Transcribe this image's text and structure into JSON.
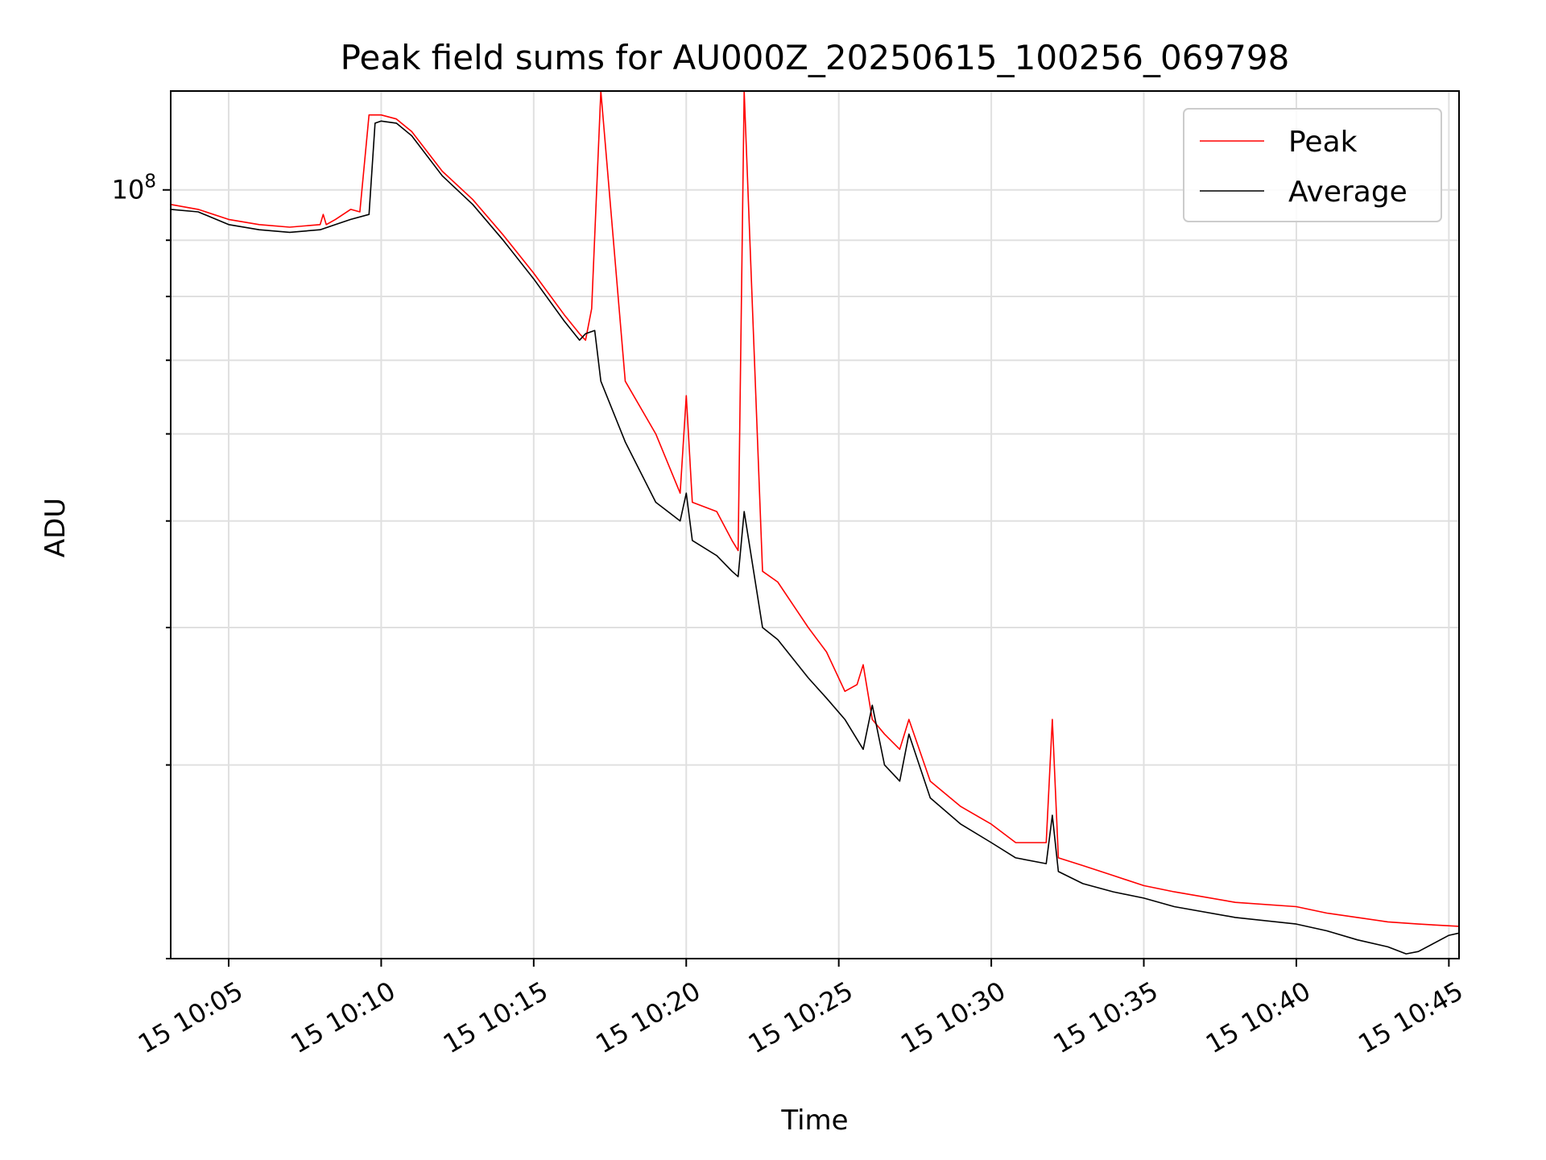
{
  "chart_data": {
    "type": "line",
    "title": "Peak field sums for AU000Z_20250615_100256_069798",
    "xlabel": "Time",
    "ylabel": "ADU",
    "y_scale": "log",
    "grid": true,
    "legend_position": "top-right",
    "x_ticks": [
      "15 10:05",
      "15 10:10",
      "15 10:15",
      "15 10:20",
      "15 10:25",
      "15 10:30",
      "15 10:35",
      "15 10:40",
      "15 10:45"
    ],
    "y_tick_labels": [
      {
        "value": 100000000,
        "base": "10",
        "exponent": "8"
      }
    ],
    "xlim": [
      "2025-06-15 10:03:06",
      "2025-06-15 10:45:20"
    ],
    "ylim": [
      20000000,
      123000000
    ],
    "series": [
      {
        "name": "Peak",
        "color": "#ff0000",
        "x": [
          "2025-06-15 10:03:06",
          "2025-06-15 10:04:00",
          "2025-06-15 10:05:00",
          "2025-06-15 10:06:00",
          "2025-06-15 10:07:00",
          "2025-06-15 10:08:00",
          "2025-06-15 10:08:06",
          "2025-06-15 10:08:12",
          "2025-06-15 10:08:30",
          "2025-06-15 10:09:00",
          "2025-06-15 10:09:18",
          "2025-06-15 10:09:36",
          "2025-06-15 10:09:48",
          "2025-06-15 10:10:00",
          "2025-06-15 10:10:30",
          "2025-06-15 10:11:00",
          "2025-06-15 10:12:00",
          "2025-06-15 10:13:00",
          "2025-06-15 10:14:00",
          "2025-06-15 10:15:00",
          "2025-06-15 10:16:00",
          "2025-06-15 10:16:30",
          "2025-06-15 10:16:42",
          "2025-06-15 10:16:54",
          "2025-06-15 10:17:12",
          "2025-06-15 10:18:00",
          "2025-06-15 10:19:00",
          "2025-06-15 10:19:48",
          "2025-06-15 10:20:00",
          "2025-06-15 10:20:12",
          "2025-06-15 10:21:00",
          "2025-06-15 10:21:30",
          "2025-06-15 10:21:42",
          "2025-06-15 10:21:54",
          "2025-06-15 10:22:30",
          "2025-06-15 10:23:00",
          "2025-06-15 10:24:00",
          "2025-06-15 10:24:36",
          "2025-06-15 10:25:12",
          "2025-06-15 10:25:36",
          "2025-06-15 10:25:48",
          "2025-06-15 10:26:06",
          "2025-06-15 10:26:30",
          "2025-06-15 10:27:00",
          "2025-06-15 10:27:18",
          "2025-06-15 10:28:00",
          "2025-06-15 10:29:00",
          "2025-06-15 10:30:00",
          "2025-06-15 10:30:48",
          "2025-06-15 10:31:48",
          "2025-06-15 10:32:00",
          "2025-06-15 10:32:12",
          "2025-06-15 10:33:00",
          "2025-06-15 10:34:00",
          "2025-06-15 10:35:00",
          "2025-06-15 10:36:00",
          "2025-06-15 10:38:00",
          "2025-06-15 10:40:00",
          "2025-06-15 10:41:00",
          "2025-06-15 10:42:00",
          "2025-06-15 10:43:00",
          "2025-06-15 10:44:00",
          "2025-06-15 10:45:20"
        ],
        "y": [
          97000000,
          96000000,
          94000000,
          93000000,
          92500000,
          93000000,
          95000000,
          93000000,
          94000000,
          96000000,
          95500000,
          117000000,
          117000000,
          117000000,
          116000000,
          113000000,
          104000000,
          98000000,
          91000000,
          84000000,
          77000000,
          74000000,
          73000000,
          78000000,
          123000000,
          67000000,
          60000000,
          53000000,
          65000000,
          52000000,
          51000000,
          48000000,
          47000000,
          123000000,
          45000000,
          44000000,
          40000000,
          38000000,
          35000000,
          35500000,
          37000000,
          33000000,
          32000000,
          31000000,
          33000000,
          29000000,
          27500000,
          26500000,
          25500000,
          25500000,
          33000000,
          24700000,
          24300000,
          23800000,
          23300000,
          23000000,
          22500000,
          22300000,
          22000000,
          21800000,
          21600000,
          21500000,
          21400000
        ]
      },
      {
        "name": "Average",
        "color": "#000000",
        "x": [
          "2025-06-15 10:03:06",
          "2025-06-15 10:04:00",
          "2025-06-15 10:05:00",
          "2025-06-15 10:06:00",
          "2025-06-15 10:07:00",
          "2025-06-15 10:08:00",
          "2025-06-15 10:08:30",
          "2025-06-15 10:09:00",
          "2025-06-15 10:09:36",
          "2025-06-15 10:09:48",
          "2025-06-15 10:10:00",
          "2025-06-15 10:10:30",
          "2025-06-15 10:11:00",
          "2025-06-15 10:12:00",
          "2025-06-15 10:13:00",
          "2025-06-15 10:14:00",
          "2025-06-15 10:15:00",
          "2025-06-15 10:16:00",
          "2025-06-15 10:16:30",
          "2025-06-15 10:16:42",
          "2025-06-15 10:17:00",
          "2025-06-15 10:17:12",
          "2025-06-15 10:18:00",
          "2025-06-15 10:19:00",
          "2025-06-15 10:19:48",
          "2025-06-15 10:20:00",
          "2025-06-15 10:20:12",
          "2025-06-15 10:21:00",
          "2025-06-15 10:21:30",
          "2025-06-15 10:21:42",
          "2025-06-15 10:21:54",
          "2025-06-15 10:22:30",
          "2025-06-15 10:23:00",
          "2025-06-15 10:24:00",
          "2025-06-15 10:24:36",
          "2025-06-15 10:25:12",
          "2025-06-15 10:25:48",
          "2025-06-15 10:26:06",
          "2025-06-15 10:26:30",
          "2025-06-15 10:27:00",
          "2025-06-15 10:27:18",
          "2025-06-15 10:28:00",
          "2025-06-15 10:29:00",
          "2025-06-15 10:30:00",
          "2025-06-15 10:30:48",
          "2025-06-15 10:31:48",
          "2025-06-15 10:32:00",
          "2025-06-15 10:32:12",
          "2025-06-15 10:33:00",
          "2025-06-15 10:34:00",
          "2025-06-15 10:35:00",
          "2025-06-15 10:36:00",
          "2025-06-15 10:38:00",
          "2025-06-15 10:40:00",
          "2025-06-15 10:41:00",
          "2025-06-15 10:42:00",
          "2025-06-15 10:43:00",
          "2025-06-15 10:43:36",
          "2025-06-15 10:44:00",
          "2025-06-15 10:45:00",
          "2025-06-15 10:45:20"
        ],
        "y": [
          96000000,
          95500000,
          93000000,
          92000000,
          91500000,
          92000000,
          93000000,
          94000000,
          95000000,
          115000000,
          115500000,
          115000000,
          112000000,
          103000000,
          97000000,
          90000000,
          83000000,
          76000000,
          73000000,
          74000000,
          74500000,
          67000000,
          59000000,
          52000000,
          50000000,
          53000000,
          48000000,
          46500000,
          45000000,
          44500000,
          51000000,
          40000000,
          39000000,
          36000000,
          34500000,
          33000000,
          31000000,
          34000000,
          30000000,
          29000000,
          32000000,
          28000000,
          26500000,
          25500000,
          24700000,
          24400000,
          27000000,
          24000000,
          23400000,
          23000000,
          22700000,
          22300000,
          21800000,
          21500000,
          21200000,
          20800000,
          20500000,
          20200000,
          20300000,
          21000000,
          21100000
        ]
      }
    ]
  }
}
